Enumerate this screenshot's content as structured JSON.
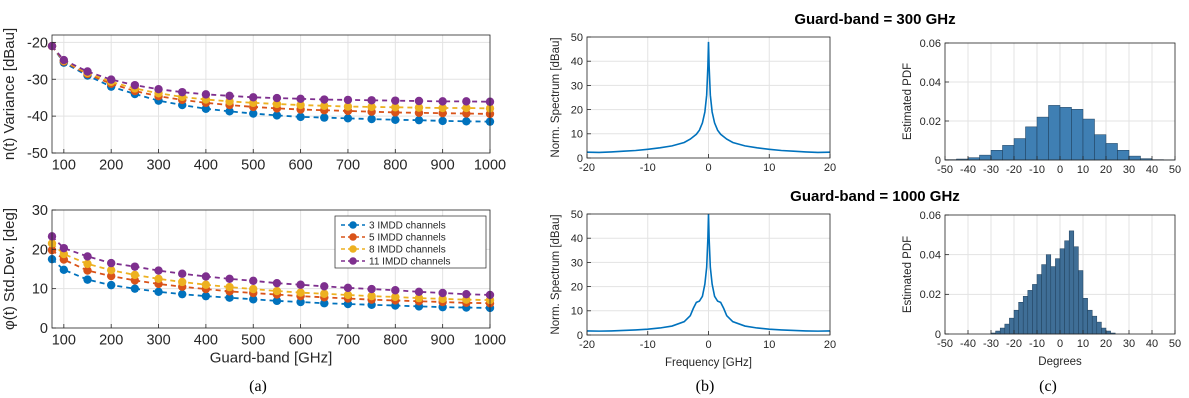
{
  "figure": {
    "captions": [
      "(a)",
      "(b)",
      "(c)"
    ],
    "titles": [
      "Guard-band = 300 GHz",
      "Guard-band = 1000 GHz"
    ]
  },
  "chart_data": [
    {
      "id": "a-top",
      "type": "line",
      "ylabel": "n(t) Variance [dBau]",
      "xlim": [
        75,
        1000
      ],
      "ylim": [
        -50,
        -18
      ],
      "x_ticks": [
        100,
        200,
        300,
        400,
        500,
        600,
        700,
        800,
        900,
        1000
      ],
      "y_ticks": [
        -50,
        -40,
        -30,
        -20
      ],
      "x": [
        75,
        100,
        150,
        200,
        250,
        300,
        350,
        400,
        450,
        500,
        550,
        600,
        650,
        700,
        750,
        800,
        850,
        900,
        950,
        1000
      ],
      "grid": true,
      "series": [
        {
          "name": "3 IMDD channels",
          "color": "#0072BD",
          "values": [
            -21,
            -25.5,
            -29,
            -32,
            -34,
            -35.8,
            -37,
            -38,
            -38.7,
            -39.3,
            -39.8,
            -40.2,
            -40.4,
            -40.6,
            -40.8,
            -41,
            -41.1,
            -41.3,
            -41.4,
            -41.5
          ]
        },
        {
          "name": "5 IMDD channels",
          "color": "#D95319",
          "values": [
            -21,
            -25.2,
            -28.6,
            -31.2,
            -33.2,
            -34.6,
            -35.6,
            -36.4,
            -37,
            -37.5,
            -37.9,
            -38.2,
            -38.4,
            -38.6,
            -38.8,
            -39,
            -39.1,
            -39.2,
            -39.3,
            -39.4
          ]
        },
        {
          "name": "8 IMDD channels",
          "color": "#EDB120",
          "values": [
            -21,
            -25,
            -28.3,
            -30.7,
            -32.5,
            -33.8,
            -34.8,
            -35.5,
            -36,
            -36.4,
            -36.7,
            -37,
            -37.2,
            -37.4,
            -37.5,
            -37.6,
            -37.7,
            -37.8,
            -37.8,
            -37.9
          ]
        },
        {
          "name": "11 IMDD channels",
          "color": "#7E2F8E",
          "values": [
            -21,
            -24.8,
            -27.9,
            -30.1,
            -31.6,
            -32.7,
            -33.5,
            -34.1,
            -34.5,
            -34.9,
            -35.1,
            -35.3,
            -35.5,
            -35.6,
            -35.7,
            -35.8,
            -35.9,
            -36,
            -36,
            -36.1
          ]
        }
      ]
    },
    {
      "id": "a-bottom",
      "type": "line",
      "ylabel": "φ(t) Std.Dev. [deg]",
      "xlabel": "Guard-band [GHz]",
      "xlim": [
        75,
        1000
      ],
      "ylim": [
        0,
        30
      ],
      "x_ticks": [
        100,
        200,
        300,
        400,
        500,
        600,
        700,
        800,
        900,
        1000
      ],
      "y_ticks": [
        0,
        10,
        20,
        30
      ],
      "x": [
        75,
        100,
        150,
        200,
        250,
        300,
        350,
        400,
        450,
        500,
        550,
        600,
        650,
        700,
        750,
        800,
        850,
        900,
        950,
        1000
      ],
      "grid": true,
      "legend": "top-right",
      "series": [
        {
          "name": "3 IMDD channels",
          "color": "#0072BD",
          "values": [
            17.5,
            14.8,
            12.3,
            10.9,
            10,
            9.2,
            8.6,
            8.1,
            7.7,
            7.3,
            6.9,
            6.6,
            6.3,
            6.1,
            5.9,
            5.7,
            5.5,
            5.3,
            5.2,
            5.1
          ]
        },
        {
          "name": "5 IMDD channels",
          "color": "#D95319",
          "values": [
            19.8,
            17.4,
            14.6,
            13.2,
            12.1,
            11.2,
            10.5,
            9.9,
            9.3,
            8.9,
            8.5,
            8.1,
            7.8,
            7.5,
            7.2,
            7,
            6.8,
            6.6,
            6.4,
            6.3
          ]
        },
        {
          "name": "8 IMDD channels",
          "color": "#EDB120",
          "values": [
            21.5,
            18.8,
            16.3,
            14.7,
            13.5,
            12.5,
            11.7,
            11,
            10.4,
            9.9,
            9.4,
            9,
            8.7,
            8.4,
            8.1,
            7.9,
            7.6,
            7.4,
            7.2,
            7.1
          ]
        },
        {
          "name": "11 IMDD channels",
          "color": "#7E2F8E",
          "values": [
            23.3,
            20.3,
            18.2,
            16.5,
            15.6,
            14.6,
            13.8,
            13.1,
            12.5,
            12,
            11.4,
            11,
            10.6,
            10.2,
            9.9,
            9.6,
            9.2,
            8.9,
            8.6,
            8.4
          ]
        }
      ]
    },
    {
      "id": "b-top",
      "type": "line",
      "ylabel": "Norm. Spectrum [dBau]",
      "xlim": [
        -20,
        20
      ],
      "ylim": [
        0,
        50
      ],
      "x_ticks": [
        -20,
        -10,
        0,
        10,
        20
      ],
      "y_ticks": [
        0,
        10,
        20,
        30,
        40,
        50
      ],
      "grid": true,
      "x": [
        -20,
        -18,
        -16,
        -14,
        -12,
        -10,
        -8,
        -6,
        -4,
        -3,
        -2,
        -1.5,
        -1,
        -0.6,
        -0.3,
        -0.1,
        0,
        0.1,
        0.3,
        0.6,
        1,
        1.5,
        2,
        3,
        4,
        6,
        8,
        10,
        12,
        14,
        16,
        18,
        20
      ],
      "series": [
        {
          "color": "#0072BD",
          "values": [
            2.4,
            2.3,
            2.5,
            2.8,
            3.1,
            3.6,
            4.2,
            5,
            6.4,
            7.8,
            9.8,
            11.5,
            14.5,
            19,
            26,
            38,
            48,
            38,
            26,
            19,
            14.5,
            11.5,
            9.8,
            7.8,
            6.4,
            5,
            4.2,
            3.6,
            3.1,
            2.8,
            2.5,
            2.3,
            2.4
          ]
        }
      ]
    },
    {
      "id": "b-bottom",
      "type": "line",
      "ylabel": "Norm. Spectrum [dBau]",
      "xlabel": "Frequency [GHz]",
      "xlim": [
        -20,
        20
      ],
      "ylim": [
        0,
        50
      ],
      "x_ticks": [
        -20,
        -10,
        0,
        10,
        20
      ],
      "y_ticks": [
        0,
        10,
        20,
        30,
        40,
        50
      ],
      "grid": true,
      "x": [
        -20,
        -18,
        -16,
        -14,
        -12,
        -10,
        -8,
        -6,
        -4,
        -3,
        -2.5,
        -2,
        -1.5,
        -1,
        -0.6,
        -0.3,
        -0.1,
        0,
        0.1,
        0.3,
        0.6,
        1,
        1.5,
        2,
        2.5,
        3,
        4,
        6,
        8,
        10,
        12,
        14,
        16,
        18,
        20
      ],
      "series": [
        {
          "color": "#0072BD",
          "values": [
            1.7,
            1.6,
            1.7,
            1.9,
            2.1,
            2.4,
            2.9,
            3.7,
            5.5,
            8,
            11,
            13.5,
            14,
            16,
            21,
            28,
            40,
            50,
            40,
            28,
            21,
            16,
            14,
            13.5,
            11,
            8,
            5.5,
            3.7,
            2.9,
            2.4,
            2.1,
            1.9,
            1.7,
            1.6,
            1.7
          ]
        }
      ]
    },
    {
      "id": "c-top",
      "type": "bar",
      "ylabel": "Estimated PDF",
      "xlim": [
        -50,
        50
      ],
      "ylim": [
        0,
        0.06
      ],
      "x_ticks": [
        -50,
        -40,
        -30,
        -20,
        -10,
        0,
        10,
        20,
        30,
        40,
        50
      ],
      "y_ticks": [
        0,
        0.02,
        0.04,
        0.06
      ],
      "grid": true,
      "color": "#3F7FB3",
      "x": [
        -47.5,
        -42.5,
        -37.5,
        -32.5,
        -27.5,
        -22.5,
        -17.5,
        -12.5,
        -7.5,
        -2.5,
        2.5,
        7.5,
        12.5,
        17.5,
        22.5,
        27.5,
        32.5,
        37.5,
        42.5,
        47.5
      ],
      "values": [
        0.0002,
        0.0005,
        0.0012,
        0.0025,
        0.005,
        0.0075,
        0.011,
        0.017,
        0.022,
        0.028,
        0.027,
        0.026,
        0.021,
        0.013,
        0.0085,
        0.005,
        0.002,
        0.0007,
        0.0002,
        0.0001
      ]
    },
    {
      "id": "c-bottom",
      "type": "bar",
      "ylabel": "Estimated PDF",
      "xlabel": "Degrees",
      "xlim": [
        -50,
        50
      ],
      "ylim": [
        0,
        0.06
      ],
      "x_ticks": [
        -50,
        -40,
        -30,
        -20,
        -10,
        0,
        10,
        20,
        30,
        40,
        50
      ],
      "y_ticks": [
        0,
        0.02,
        0.04,
        0.06
      ],
      "grid": true,
      "color": "#3F6E96",
      "x": [
        -29,
        -27,
        -25,
        -23,
        -21,
        -19,
        -17,
        -15,
        -13,
        -11,
        -9,
        -7,
        -5,
        -3,
        -1,
        1,
        3,
        5,
        7,
        9,
        11,
        13,
        15,
        17,
        19,
        21,
        23
      ],
      "values": [
        0.0005,
        0.0015,
        0.003,
        0.005,
        0.008,
        0.012,
        0.016,
        0.019,
        0.022,
        0.025,
        0.03,
        0.035,
        0.04,
        0.034,
        0.038,
        0.043,
        0.047,
        0.052,
        0.044,
        0.032,
        0.018,
        0.012,
        0.009,
        0.006,
        0.003,
        0.0015,
        0.0005
      ]
    }
  ]
}
